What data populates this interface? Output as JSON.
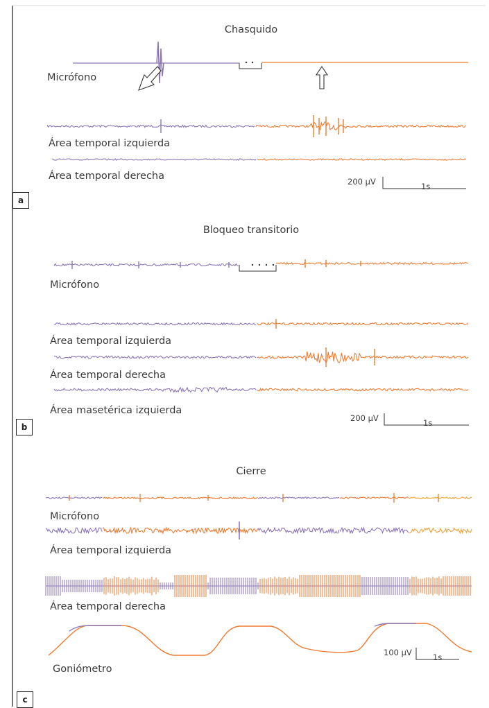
{
  "figure": {
    "colors": {
      "before": "#8c76b8",
      "after": "#ef7a30",
      "after_light": "#f3a030",
      "ink": "#333333",
      "frame": "#1a1a1a"
    },
    "panels": [
      {
        "tag": "a",
        "title": "Chasquido",
        "traces": [
          "Micrófono",
          "Área temporal izquierda",
          "Área temporal derecha"
        ],
        "scale_amplitude": "200 µV",
        "scale_time": "1s"
      },
      {
        "tag": "b",
        "title": "Bloqueo transitorio",
        "traces": [
          "Micrófono",
          "Área temporal izquierda",
          "Área temporal derecha",
          "Área masetérica izquierda"
        ],
        "scale_amplitude": "200 µV",
        "scale_time": "1s"
      },
      {
        "tag": "c",
        "title": "Cierre",
        "traces": [
          "Micrófono",
          "Área temporal izquierda",
          "Área temporal derecha",
          "Goniómetro"
        ],
        "scale_amplitude": "100 µV",
        "scale_time": "1s"
      }
    ]
  }
}
